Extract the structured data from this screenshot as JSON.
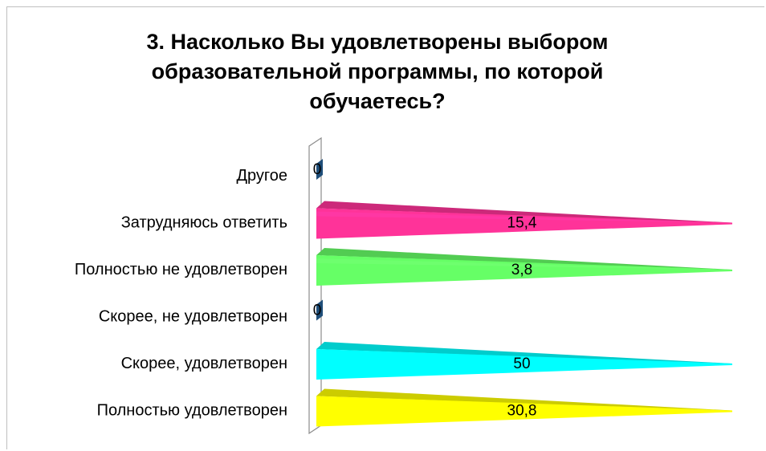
{
  "chart_data": {
    "type": "bar",
    "orientation": "horizontal",
    "title_lines": [
      "3. Насколько Вы удовлетворены выбором",
      "образовательной программы, по которой",
      "обучаетесь?"
    ],
    "categories": [
      "Другое",
      "Затрудняюсь ответить",
      "Полностью не удовлетворен",
      "Скорее, не удовлетворен",
      "Скорее, удовлетворен",
      "Полностью удовлетворен"
    ],
    "values": [
      0,
      15.4,
      3.8,
      0,
      50,
      30.8
    ],
    "value_labels": [
      "0",
      "15,4",
      "3,8",
      "0",
      "50",
      "30,8"
    ],
    "colors": [
      "#1f4e79",
      "#ff3399",
      "#66ff66",
      "#1f4e79",
      "#00ffff",
      "#ffff00"
    ],
    "legend": "none",
    "grid": false
  }
}
